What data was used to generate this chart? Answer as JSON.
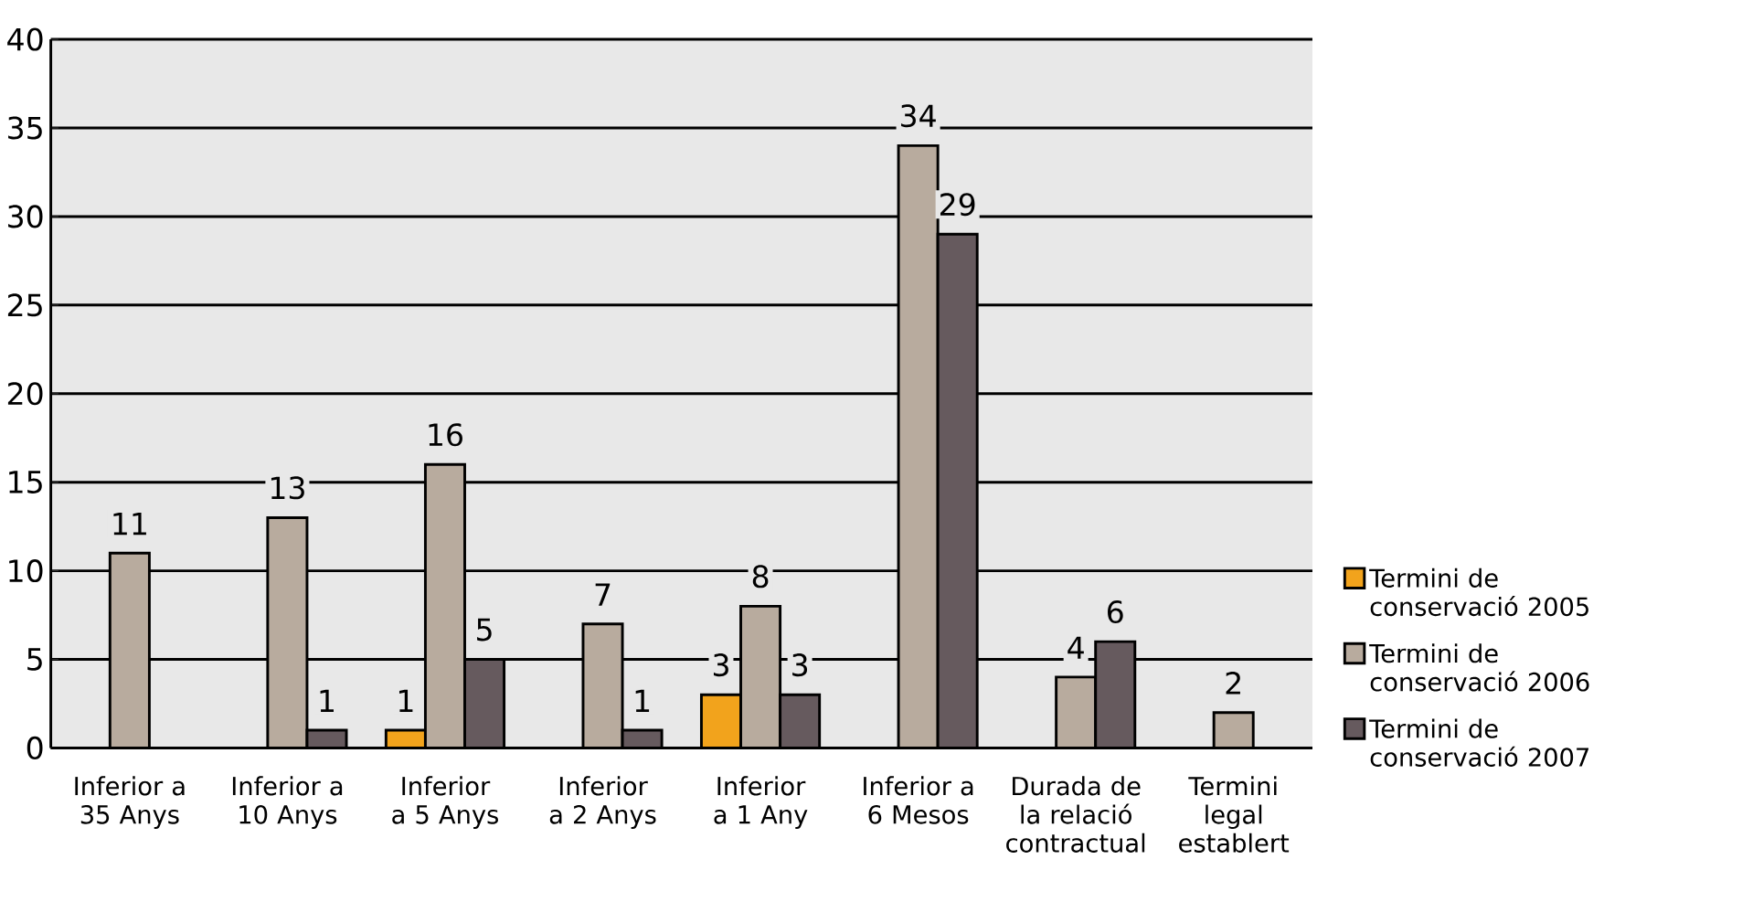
{
  "chart_data": {
    "type": "bar",
    "categories": [
      "Inferior a 35 Anys",
      "Inferior a 10 Anys",
      "Inferior a 5 Anys",
      "Inferior a 2 Anys",
      "Inferior a 1 Any",
      "Inferior a 6 Mesos",
      "Durada de la relació contractual",
      "Termini legal establert"
    ],
    "series": [
      {
        "name": "Termini de conservació 2005",
        "color": "#f2a31c",
        "values": [
          null,
          null,
          1,
          null,
          3,
          null,
          null,
          null
        ]
      },
      {
        "name": "Termini de conservació 2006",
        "color": "#b8ab9e",
        "values": [
          11,
          13,
          16,
          7,
          8,
          34,
          4,
          2
        ]
      },
      {
        "name": "Termini de conservació 2007",
        "color": "#665a5e",
        "values": [
          null,
          1,
          5,
          1,
          3,
          29,
          6,
          null
        ]
      }
    ],
    "ylim": [
      0,
      40
    ],
    "yticks": [
      0,
      5,
      10,
      15,
      20,
      25,
      30,
      35,
      40
    ],
    "grid": "y",
    "legend": "right",
    "data_labels": true
  }
}
